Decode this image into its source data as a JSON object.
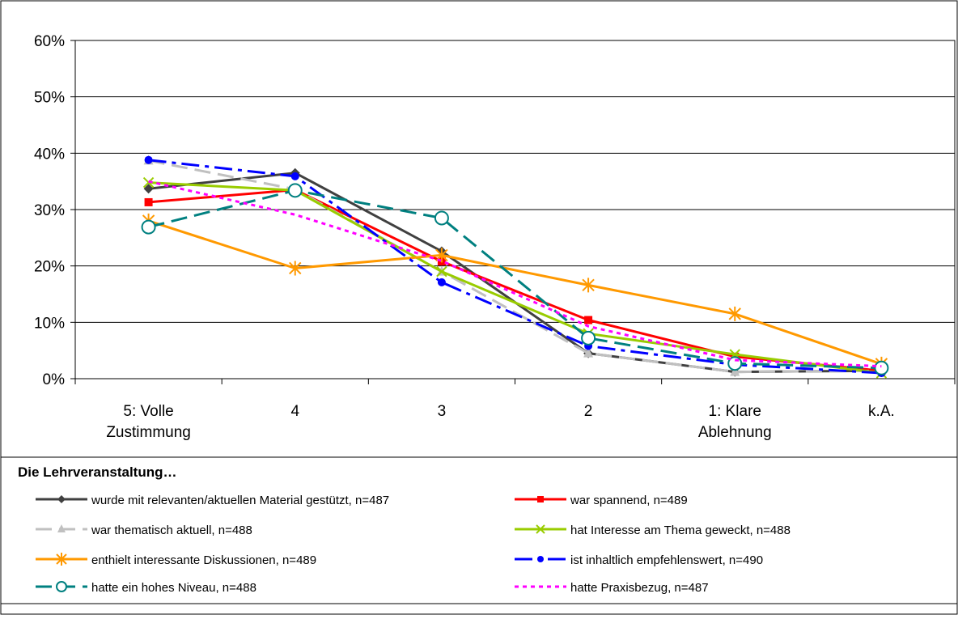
{
  "chart_data": {
    "type": "line",
    "ylim": [
      0,
      0.6
    ],
    "y_ticks": [
      {
        "value": 0,
        "label": "0%"
      },
      {
        "value": 0.1,
        "label": "10%"
      },
      {
        "value": 0.2,
        "label": "20%"
      },
      {
        "value": 0.3,
        "label": "30%"
      },
      {
        "value": 0.4,
        "label": "40%"
      },
      {
        "value": 0.5,
        "label": "50%"
      },
      {
        "value": 0.6,
        "label": "60%"
      }
    ],
    "categories": [
      [
        "5: Volle",
        "Zustimmung"
      ],
      [
        "4"
      ],
      [
        "3"
      ],
      [
        "2"
      ],
      [
        "1: Klare",
        "Ablehnung"
      ],
      [
        "k.A."
      ]
    ],
    "grid": "horizontal",
    "legend_title": "Die Lehrveranstaltung…",
    "legend_position": "bottom",
    "series": [
      {
        "name": "wurde mit relevanten/aktuellen Material gestützt, n=487",
        "color": "#404040",
        "dash": "solid",
        "marker": "diamond",
        "values": [
          0.337,
          0.365,
          0.226,
          0.045,
          0.012,
          0.014
        ]
      },
      {
        "name": "war spannend, n=489",
        "color": "#ff0000",
        "dash": "solid",
        "marker": "square",
        "values": [
          0.313,
          0.335,
          0.208,
          0.104,
          0.039,
          0.014
        ]
      },
      {
        "name": "war thematisch aktuell, n=488",
        "color": "#c0c0c0",
        "dash": "longdash",
        "marker": "triangle",
        "values": [
          0.387,
          0.336,
          0.19,
          0.045,
          0.012,
          0.014
        ]
      },
      {
        "name": "hat Interesse am Thema geweckt, n=488",
        "color": "#99cc00",
        "dash": "solid",
        "marker": "x",
        "values": [
          0.348,
          0.334,
          0.19,
          0.08,
          0.043,
          0.01
        ]
      },
      {
        "name": "enthielt interessante Diskussionen, n=489",
        "color": "#ff9900",
        "dash": "solid",
        "marker": "asterisk",
        "values": [
          0.28,
          0.196,
          0.219,
          0.166,
          0.115,
          0.026
        ]
      },
      {
        "name": "ist inhaltlich empfehlenswert, n=490",
        "color": "#0000ff",
        "dash": "dashdot",
        "marker": "circle",
        "values": [
          0.388,
          0.359,
          0.171,
          0.058,
          0.025,
          0.01
        ]
      },
      {
        "name": "hatte ein hohes Niveau, n=488",
        "color": "#008080",
        "dash": "longdash",
        "marker": "circle-open",
        "values": [
          0.269,
          0.334,
          0.285,
          0.072,
          0.027,
          0.019
        ]
      },
      {
        "name": "hatte Praxisbezug, n=487",
        "color": "#ff00ff",
        "dash": "dot",
        "marker": "none",
        "values": [
          0.35,
          0.291,
          0.209,
          0.093,
          0.033,
          0.022
        ]
      }
    ]
  }
}
